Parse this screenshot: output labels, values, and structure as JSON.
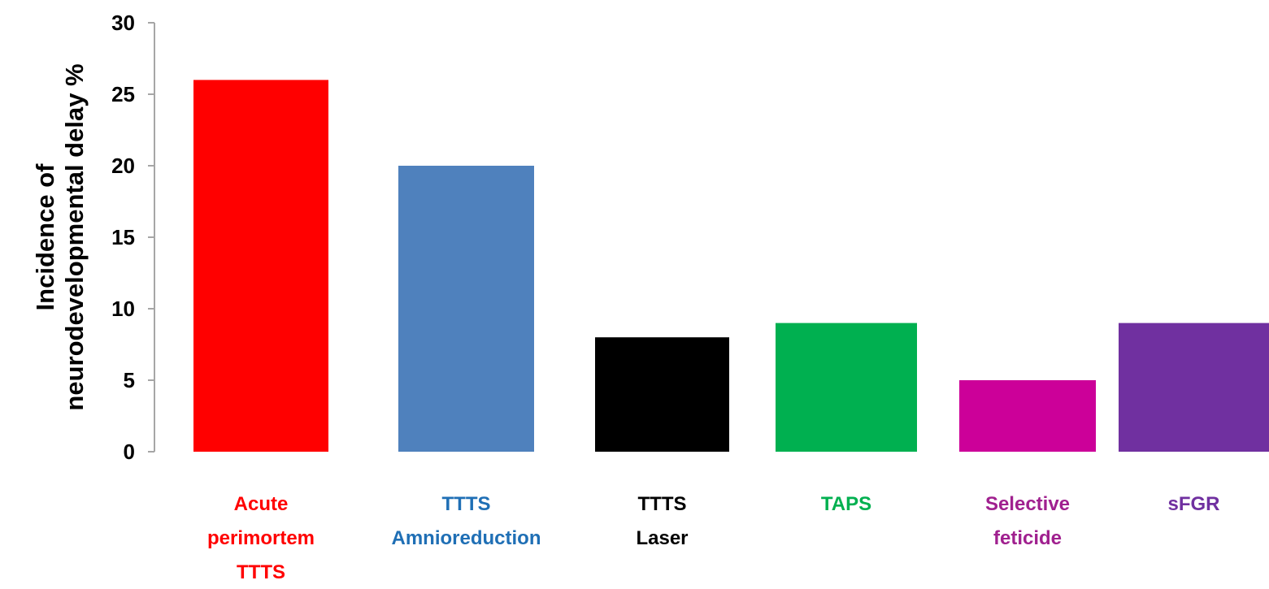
{
  "chart_data": {
    "type": "bar",
    "title": "",
    "xlabel": "",
    "ylabel_lines": [
      "Incidence of",
      "neurodevelopmental delay %"
    ],
    "ylim": [
      0,
      30
    ],
    "yticks": [
      0,
      5,
      10,
      15,
      20,
      25,
      30
    ],
    "grid": false,
    "categories": [
      {
        "label_lines": [
          "Acute",
          "perimortem",
          "TTTS"
        ],
        "value": 26,
        "color": "#ff0000"
      },
      {
        "label_lines": [
          "TTTS",
          "Amnioreduction"
        ],
        "value": 20,
        "color": "#4f81bd",
        "label_color": "#1f6fb5"
      },
      {
        "label_lines": [
          "TTTS",
          "Laser"
        ],
        "value": 8,
        "color": "#000000"
      },
      {
        "label_lines": [
          "TAPS"
        ],
        "value": 9,
        "color": "#00b050"
      },
      {
        "label_lines": [
          "Selective",
          "feticide"
        ],
        "value": 5,
        "color": "#cc0099",
        "label_color": "#a0208f"
      },
      {
        "label_lines": [
          "sFGR"
        ],
        "value": 9,
        "color": "#7030a0"
      }
    ]
  }
}
